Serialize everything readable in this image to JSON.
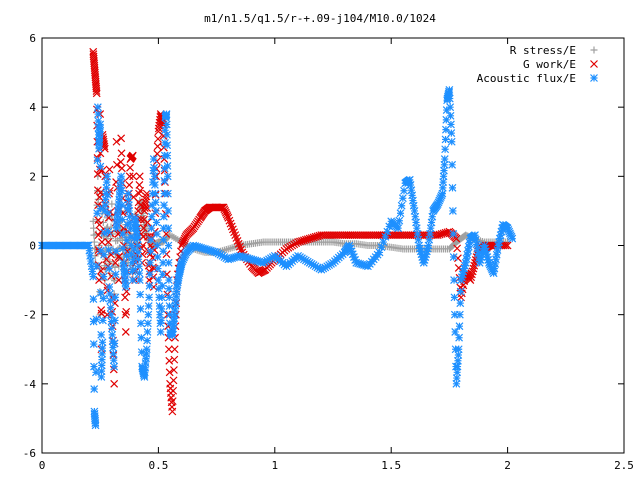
{
  "chart_data": {
    "type": "scatter",
    "title": "m1/n1.5/q1.5/r-+.09-j104/M10.0/1024",
    "xlabel": "",
    "ylabel": "",
    "xlim": [
      0,
      2.5
    ],
    "ylim": [
      -6,
      6
    ],
    "xticks": [
      {
        "v": 0,
        "label": "0"
      },
      {
        "v": 0.5,
        "label": "0.5"
      },
      {
        "v": 1,
        "label": "1"
      },
      {
        "v": 1.5,
        "label": "1.5"
      },
      {
        "v": 2,
        "label": "2"
      },
      {
        "v": 2.5,
        "label": "2.5"
      }
    ],
    "yticks": [
      {
        "v": -6,
        "label": "-6"
      },
      {
        "v": -4,
        "label": "-4"
      },
      {
        "v": -2,
        "label": "-2"
      },
      {
        "v": 0,
        "label": "0"
      },
      {
        "v": 2,
        "label": "2"
      },
      {
        "v": 4,
        "label": "4"
      },
      {
        "v": 6,
        "label": "6"
      }
    ],
    "grid": false,
    "legend_position": "top-right",
    "series": [
      {
        "name": "R stress/E",
        "marker": "plus",
        "color": "#a0a0a0",
        "points": [
          [
            0.22,
            0.7
          ],
          [
            0.23,
            -0.5
          ],
          [
            0.24,
            2.0
          ],
          [
            0.25,
            -2.0
          ],
          [
            0.26,
            1.5
          ],
          [
            0.27,
            -1.0
          ],
          [
            0.28,
            0.8
          ],
          [
            0.29,
            -0.8
          ],
          [
            0.3,
            1.2
          ],
          [
            0.31,
            -1.4
          ],
          [
            0.32,
            0.9
          ],
          [
            0.33,
            -0.6
          ],
          [
            0.34,
            1.0
          ],
          [
            0.35,
            -0.7
          ],
          [
            0.36,
            0.6
          ],
          [
            0.37,
            -0.5
          ],
          [
            0.38,
            0.5
          ],
          [
            0.39,
            -0.8
          ],
          [
            0.4,
            0.9
          ],
          [
            0.41,
            -0.3
          ],
          [
            0.42,
            1.3
          ],
          [
            0.43,
            1.0
          ],
          [
            0.44,
            0.6
          ],
          [
            0.45,
            0.3
          ],
          [
            0.47,
            0.0
          ],
          [
            0.5,
            0.1
          ],
          [
            0.52,
            0.1
          ],
          [
            0.55,
            0.3
          ],
          [
            0.6,
            0.1
          ],
          [
            0.65,
            -0.1
          ],
          [
            0.7,
            -0.2
          ],
          [
            0.75,
            -0.2
          ],
          [
            0.8,
            -0.1
          ],
          [
            0.85,
            0.0
          ],
          [
            0.9,
            0.05
          ],
          [
            0.95,
            0.1
          ],
          [
            1.0,
            0.1
          ],
          [
            1.05,
            0.1
          ],
          [
            1.1,
            0.1
          ],
          [
            1.15,
            0.1
          ],
          [
            1.2,
            0.1
          ],
          [
            1.25,
            0.1
          ],
          [
            1.3,
            0.05
          ],
          [
            1.35,
            0.05
          ],
          [
            1.4,
            0.0
          ],
          [
            1.45,
            0.0
          ],
          [
            1.5,
            -0.05
          ],
          [
            1.55,
            -0.1
          ],
          [
            1.6,
            -0.1
          ],
          [
            1.65,
            -0.1
          ],
          [
            1.7,
            -0.1
          ],
          [
            1.75,
            -0.1
          ],
          [
            1.78,
            0.1
          ],
          [
            1.8,
            0.2
          ],
          [
            1.82,
            0.3
          ],
          [
            1.85,
            0.2
          ],
          [
            1.9,
            0.1
          ],
          [
            1.95,
            0.1
          ],
          [
            2.0,
            0.1
          ]
        ]
      },
      {
        "name": "G work/E",
        "marker": "cross",
        "color": "#e00000",
        "points": [
          [
            0.22,
            5.6
          ],
          [
            0.225,
            5.2
          ],
          [
            0.23,
            4.8
          ],
          [
            0.235,
            4.4
          ],
          [
            0.24,
            1.6
          ],
          [
            0.245,
            -1.0
          ],
          [
            0.25,
            3.8
          ],
          [
            0.255,
            -3.0
          ],
          [
            0.26,
            3.2
          ],
          [
            0.27,
            2.8
          ],
          [
            0.28,
            -2.0
          ],
          [
            0.29,
            2.2
          ],
          [
            0.3,
            -1.5
          ],
          [
            0.31,
            -4.0
          ],
          [
            0.32,
            3.0
          ],
          [
            0.33,
            -1.0
          ],
          [
            0.34,
            3.1
          ],
          [
            0.35,
            0.5
          ],
          [
            0.36,
            -2.5
          ],
          [
            0.37,
            1.0
          ],
          [
            0.38,
            2.5
          ],
          [
            0.39,
            2.6
          ],
          [
            0.4,
            -1.0
          ],
          [
            0.41,
            0.5
          ],
          [
            0.42,
            2.0
          ],
          [
            0.43,
            -0.5
          ],
          [
            0.44,
            1.0
          ],
          [
            0.45,
            1.5
          ],
          [
            0.46,
            -1.0
          ],
          [
            0.47,
            0.5
          ],
          [
            0.48,
            -1.2
          ],
          [
            0.49,
            2.0
          ],
          [
            0.5,
            3.3
          ],
          [
            0.51,
            3.8
          ],
          [
            0.52,
            3.5
          ],
          [
            0.53,
            1.5
          ],
          [
            0.54,
            -2.0
          ],
          [
            0.55,
            -4.0
          ],
          [
            0.56,
            -4.8
          ],
          [
            0.57,
            -3.0
          ],
          [
            0.58,
            -1.0
          ],
          [
            0.6,
            0.0
          ],
          [
            0.62,
            0.3
          ],
          [
            0.65,
            0.5
          ],
          [
            0.68,
            0.8
          ],
          [
            0.7,
            1.0
          ],
          [
            0.72,
            1.1
          ],
          [
            0.75,
            1.1
          ],
          [
            0.78,
            1.1
          ],
          [
            0.8,
            0.8
          ],
          [
            0.83,
            0.3
          ],
          [
            0.86,
            -0.2
          ],
          [
            0.9,
            -0.6
          ],
          [
            0.93,
            -0.8
          ],
          [
            0.96,
            -0.7
          ],
          [
            1.0,
            -0.4
          ],
          [
            1.05,
            -0.1
          ],
          [
            1.1,
            0.1
          ],
          [
            1.15,
            0.2
          ],
          [
            1.2,
            0.3
          ],
          [
            1.25,
            0.3
          ],
          [
            1.3,
            0.3
          ],
          [
            1.35,
            0.3
          ],
          [
            1.4,
            0.3
          ],
          [
            1.45,
            0.3
          ],
          [
            1.5,
            0.3
          ],
          [
            1.55,
            0.3
          ],
          [
            1.6,
            0.3
          ],
          [
            1.65,
            0.3
          ],
          [
            1.7,
            0.3
          ],
          [
            1.75,
            0.4
          ],
          [
            1.78,
            0.2
          ],
          [
            1.8,
            -1.5
          ],
          [
            1.82,
            -0.8
          ],
          [
            1.84,
            -1.0
          ],
          [
            1.86,
            -0.5
          ],
          [
            1.88,
            0.0
          ],
          [
            1.9,
            -0.1
          ],
          [
            1.92,
            0.0
          ],
          [
            1.95,
            0.0
          ],
          [
            2.0,
            0.0
          ]
        ]
      },
      {
        "name": "Acoustic flux/E",
        "marker": "star",
        "color": "#1e90ff",
        "points": [
          [
            0.0,
            0.0
          ],
          [
            0.03,
            0.0
          ],
          [
            0.06,
            0.0
          ],
          [
            0.09,
            0.0
          ],
          [
            0.12,
            0.0
          ],
          [
            0.15,
            0.0
          ],
          [
            0.18,
            0.0
          ],
          [
            0.2,
            0.0
          ],
          [
            0.22,
            -0.9
          ],
          [
            0.225,
            -4.8
          ],
          [
            0.23,
            -5.2
          ],
          [
            0.24,
            4.0
          ],
          [
            0.245,
            2.8
          ],
          [
            0.25,
            3.5
          ],
          [
            0.255,
            -3.8
          ],
          [
            0.26,
            -2.8
          ],
          [
            0.27,
            1.0
          ],
          [
            0.28,
            2.0
          ],
          [
            0.29,
            -1.2
          ],
          [
            0.3,
            -2.4
          ],
          [
            0.31,
            -3.5
          ],
          [
            0.32,
            0.5
          ],
          [
            0.33,
            1.2
          ],
          [
            0.34,
            2.0
          ],
          [
            0.35,
            -0.5
          ],
          [
            0.36,
            -1.2
          ],
          [
            0.37,
            1.5
          ],
          [
            0.38,
            0.5
          ],
          [
            0.39,
            -1.0
          ],
          [
            0.4,
            0.8
          ],
          [
            0.41,
            0.2
          ],
          [
            0.42,
            -1.0
          ],
          [
            0.43,
            -3.5
          ],
          [
            0.44,
            -3.8
          ],
          [
            0.45,
            -3.0
          ],
          [
            0.46,
            -1.5
          ],
          [
            0.47,
            0.5
          ],
          [
            0.48,
            2.5
          ],
          [
            0.49,
            1.0
          ],
          [
            0.5,
            -1.0
          ],
          [
            0.51,
            -2.5
          ],
          [
            0.52,
            -0.5
          ],
          [
            0.525,
            1.5
          ],
          [
            0.53,
            3.7
          ],
          [
            0.535,
            3.8
          ],
          [
            0.54,
            2.0
          ],
          [
            0.545,
            -1.0
          ],
          [
            0.55,
            -2.5
          ],
          [
            0.56,
            -2.6
          ],
          [
            0.57,
            -2.0
          ],
          [
            0.58,
            -1.2
          ],
          [
            0.59,
            -0.8
          ],
          [
            0.6,
            -0.5
          ],
          [
            0.62,
            -0.2
          ],
          [
            0.65,
            0.0
          ],
          [
            0.7,
            -0.1
          ],
          [
            0.75,
            -0.2
          ],
          [
            0.8,
            -0.4
          ],
          [
            0.85,
            -0.3
          ],
          [
            0.9,
            -0.4
          ],
          [
            0.95,
            -0.5
          ],
          [
            1.0,
            -0.3
          ],
          [
            1.05,
            -0.6
          ],
          [
            1.1,
            -0.3
          ],
          [
            1.15,
            -0.5
          ],
          [
            1.2,
            -0.7
          ],
          [
            1.25,
            -0.5
          ],
          [
            1.3,
            -0.2
          ],
          [
            1.32,
            0.0
          ],
          [
            1.35,
            -0.5
          ],
          [
            1.4,
            -0.6
          ],
          [
            1.45,
            -0.2
          ],
          [
            1.5,
            0.7
          ],
          [
            1.53,
            0.5
          ],
          [
            1.56,
            1.8
          ],
          [
            1.58,
            1.9
          ],
          [
            1.6,
            1.0
          ],
          [
            1.62,
            0.0
          ],
          [
            1.64,
            -0.5
          ],
          [
            1.66,
            0.0
          ],
          [
            1.68,
            1.0
          ],
          [
            1.7,
            1.2
          ],
          [
            1.72,
            1.5
          ],
          [
            1.73,
            2.5
          ],
          [
            1.74,
            4.2
          ],
          [
            1.75,
            4.5
          ],
          [
            1.76,
            3.0
          ],
          [
            1.77,
            -1.0
          ],
          [
            1.78,
            -4.0
          ],
          [
            1.79,
            -3.0
          ],
          [
            1.8,
            -1.0
          ],
          [
            1.82,
            -0.5
          ],
          [
            1.84,
            0.2
          ],
          [
            1.86,
            0.3
          ],
          [
            1.88,
            -0.5
          ],
          [
            1.9,
            0.0
          ],
          [
            1.92,
            -0.5
          ],
          [
            1.94,
            -0.8
          ],
          [
            1.96,
            0.0
          ],
          [
            1.98,
            0.6
          ],
          [
            2.0,
            0.5
          ],
          [
            2.02,
            0.2
          ]
        ]
      }
    ]
  }
}
